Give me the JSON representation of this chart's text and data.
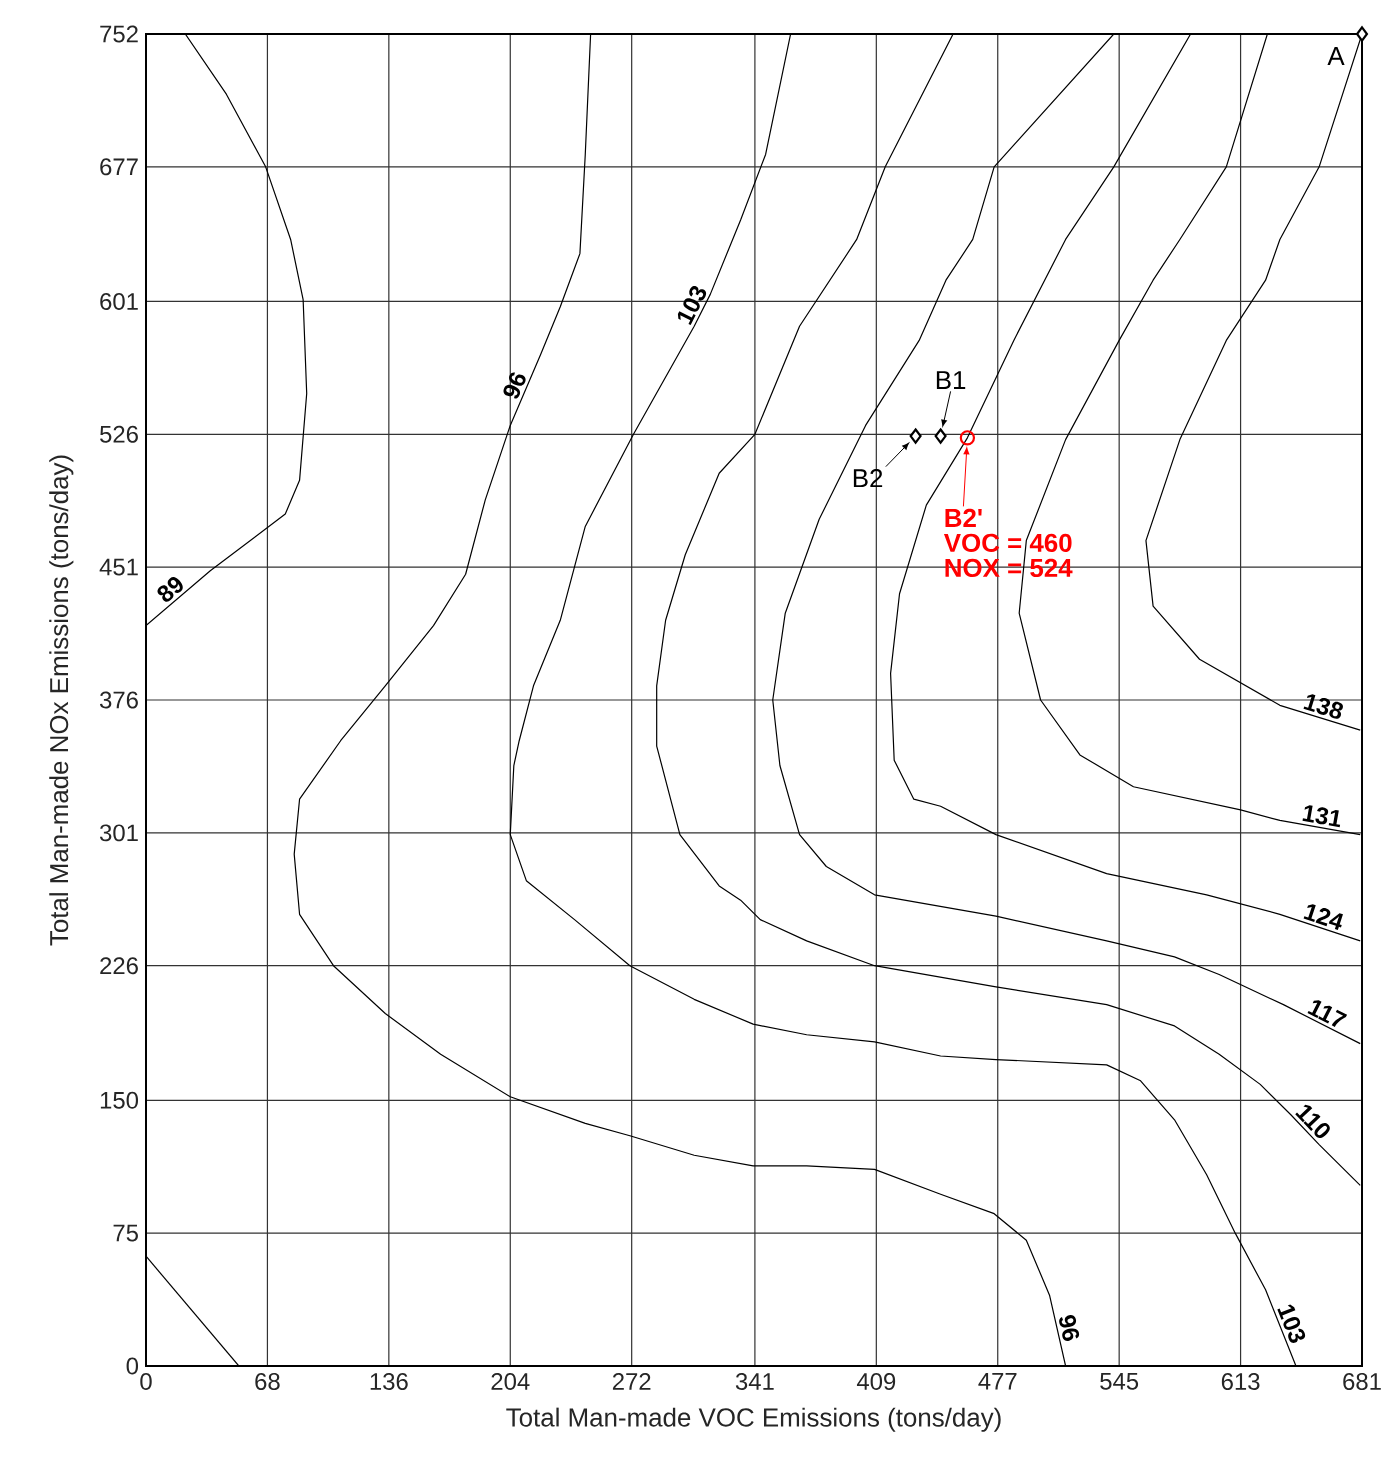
{
  "chart_data": {
    "type": "line",
    "xlabel": "Total Man-made VOC Emissions (tons/day)",
    "ylabel": "Total Man-made NOx Emissions (tons/day)",
    "xlim": [
      0,
      681
    ],
    "ylim": [
      0,
      752
    ],
    "xticks": [
      0,
      68,
      136,
      204,
      272,
      341,
      409,
      477,
      545,
      613,
      681
    ],
    "yticks": [
      0,
      75,
      150,
      226,
      301,
      376,
      451,
      526,
      601,
      677,
      752
    ],
    "grid": true,
    "series": [
      {
        "color": "#000000",
        "x": [
          0,
          52
        ],
        "values": [
          62,
          0
        ]
      },
      {
        "name": "89",
        "color": "#000000",
        "x": [
          22,
          45,
          67,
          81,
          88,
          90,
          86,
          78,
          36,
          0
        ],
        "values": [
          752,
          718,
          677,
          636,
          602,
          549,
          500,
          481,
          449,
          418
        ]
      },
      {
        "name": "96",
        "color": "#000000",
        "x": [
          249,
          246,
          243,
          232,
          221,
          204,
          190,
          179,
          161,
          134,
          109,
          86,
          83,
          86,
          105,
          134,
          165,
          204,
          246,
          271,
          307,
          340,
          370,
          408,
          445,
          475,
          493,
          506,
          515
        ],
        "values": [
          752,
          684,
          628,
          598,
          571,
          531,
          489,
          447,
          418,
          384,
          353,
          320,
          289,
          255,
          226,
          199,
          176,
          152,
          137,
          130,
          119,
          113,
          113,
          111,
          97,
          86,
          71,
          40,
          0
        ]
      },
      {
        "name": "103",
        "color": "#000000",
        "x": [
          361,
          347,
          333,
          316,
          307,
          273,
          246,
          232,
          217,
          209,
          206,
          204,
          213,
          240,
          271,
          307,
          340,
          370,
          408,
          445,
          476,
          538,
          557,
          576,
          594,
          610,
          627,
          644
        ],
        "values": [
          752,
          684,
          647,
          605,
          587,
          526,
          474,
          421,
          384,
          353,
          339,
          300,
          274,
          252,
          226,
          207,
          193,
          187,
          183,
          175,
          173,
          170,
          161,
          139,
          108,
          75,
          43,
          0
        ]
      },
      {
        "name": "110",
        "color": "#000000",
        "x": [
          452,
          414,
          398,
          366,
          341,
          321,
          302,
          291,
          286,
          286,
          299,
          321,
          333,
          344,
          370,
          408,
          476,
          538,
          576,
          601,
          624,
          641,
          657,
          680
        ],
        "values": [
          752,
          677,
          636,
          587,
          526,
          504,
          458,
          421,
          384,
          350,
          300,
          271,
          263,
          252,
          240,
          226,
          214,
          204,
          192,
          176,
          159,
          142,
          125,
          102
        ]
      },
      {
        "name": "117",
        "color": "#000000",
        "x": [
          542,
          475,
          463,
          448,
          433,
          403,
          377,
          358,
          351,
          355,
          366,
          381,
          408,
          476,
          538,
          576,
          601,
          637,
          680
        ],
        "values": [
          752,
          677,
          636,
          613,
          579,
          531,
          478,
          425,
          376,
          339,
          300,
          282,
          266,
          254,
          240,
          231,
          221,
          204,
          182
        ]
      },
      {
        "name": "124",
        "color": "#000000",
        "x": [
          585,
          542,
          515,
          486,
          460,
          437,
          422,
          417,
          419,
          430,
          445,
          476,
          538,
          594,
          635,
          680
        ],
        "values": [
          752,
          677,
          636,
          579,
          524,
          486,
          436,
          391,
          342,
          320,
          316,
          300,
          278,
          266,
          255,
          240
        ]
      },
      {
        "name": "131",
        "color": "#000000",
        "x": [
          628,
          605,
          579,
          564,
          545,
          515,
          493,
          489,
          501,
          523,
          553,
          613,
          635,
          680
        ],
        "values": [
          752,
          677,
          636,
          613,
          579,
          523,
          466,
          425,
          376,
          345,
          327,
          314,
          308,
          300
        ]
      },
      {
        "name": "138",
        "color": "#000000",
        "x": [
          681,
          657,
          635,
          627,
          605,
          579,
          560,
          564,
          590,
          635,
          680
        ],
        "values": [
          752,
          677,
          636,
          613,
          579,
          523,
          466,
          429,
          399,
          373,
          359
        ]
      },
      {
        "type": "scatter",
        "marker": "diamond",
        "color": "#000000",
        "x": [
          681,
          445,
          431
        ],
        "values": [
          752,
          525,
          525
        ]
      },
      {
        "type": "scatter",
        "marker": "circle",
        "color": "#ff0000",
        "x": [
          460
        ],
        "values": [
          524
        ]
      }
    ],
    "annotations": [
      {
        "text": "A",
        "x": 681,
        "y": 752
      },
      {
        "text": "B1",
        "x": 445,
        "y": 525
      },
      {
        "text": "B2",
        "x": 431,
        "y": 525
      },
      {
        "text": "B2'",
        "x": 460,
        "y": 524
      },
      "VOC = 460",
      "NOX = 524"
    ]
  }
}
